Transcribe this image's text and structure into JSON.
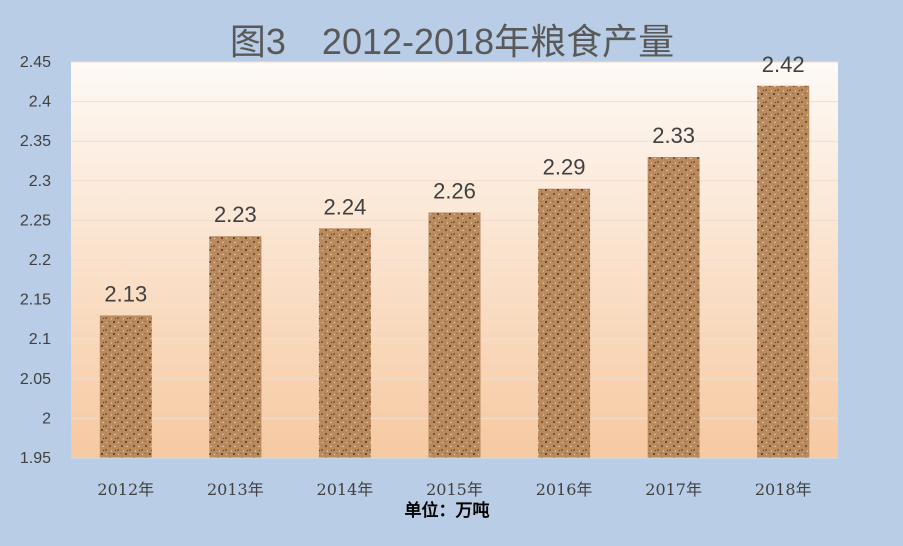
{
  "chart_data": {
    "type": "bar",
    "title": "图3　2012-2018年粮食产量",
    "categories": [
      "2012年",
      "2013年",
      "2014年",
      "2015年",
      "2016年",
      "2017年",
      "2018年"
    ],
    "values": [
      2.13,
      2.23,
      2.24,
      2.26,
      2.29,
      2.33,
      2.42
    ],
    "ylim": [
      1.95,
      2.45
    ],
    "yticks": [
      "1.95",
      "2",
      "2.05",
      "2.1",
      "2.15",
      "2.2",
      "2.25",
      "2.3",
      "2.35",
      "2.4",
      "2.45"
    ],
    "xlabel": "单位：万吨",
    "ylabel": "",
    "grid": true,
    "data_labels": [
      "2.13",
      "2.23",
      "2.24",
      "2.26",
      "2.29",
      "2.33",
      "2.42"
    ],
    "colors": {
      "background": "#b9cee6",
      "plot_top": "#fefaf6",
      "plot_bottom": "#f6c9a1",
      "bar_base": "#b9875c",
      "gridline": "#f2dfcf"
    }
  }
}
